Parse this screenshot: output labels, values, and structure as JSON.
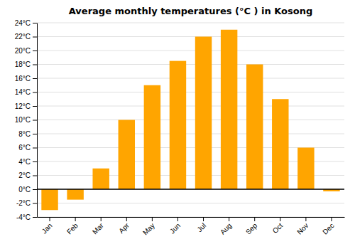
{
  "chart_data": {
    "type": "bar",
    "title": "Average monthly temperatures (°C ) in Kosong",
    "categories": [
      "Jan",
      "Feb",
      "Mar",
      "Apr",
      "May",
      "Jun",
      "Jul",
      "Aug",
      "Sep",
      "Oct",
      "Nov",
      "Dec"
    ],
    "values": [
      -3.0,
      -1.5,
      3.0,
      10.0,
      15.0,
      18.5,
      22.0,
      23.0,
      18.0,
      13.0,
      6.0,
      -0.3
    ],
    "color": "#FFA500",
    "ylim": [
      -4,
      24
    ],
    "yticks": [
      {
        "value": -4,
        "label": "-4°C"
      },
      {
        "value": -2,
        "label": "-2°C"
      },
      {
        "value": 0,
        "label": "0°C"
      },
      {
        "value": 2,
        "label": "2°C"
      },
      {
        "value": 4,
        "label": "4°C"
      },
      {
        "value": 6,
        "label": "6°C"
      },
      {
        "value": 8,
        "label": "8°C"
      },
      {
        "value": 10,
        "label": "10°C"
      },
      {
        "value": 12,
        "label": "12°C"
      },
      {
        "value": 14,
        "label": "14°C"
      },
      {
        "value": 16,
        "label": "16°C"
      },
      {
        "value": 18,
        "label": "18°C"
      },
      {
        "value": 20,
        "label": "20°C"
      },
      {
        "value": 22,
        "label": "22°C"
      },
      {
        "value": 24,
        "label": "24°C"
      }
    ],
    "grid": true
  }
}
